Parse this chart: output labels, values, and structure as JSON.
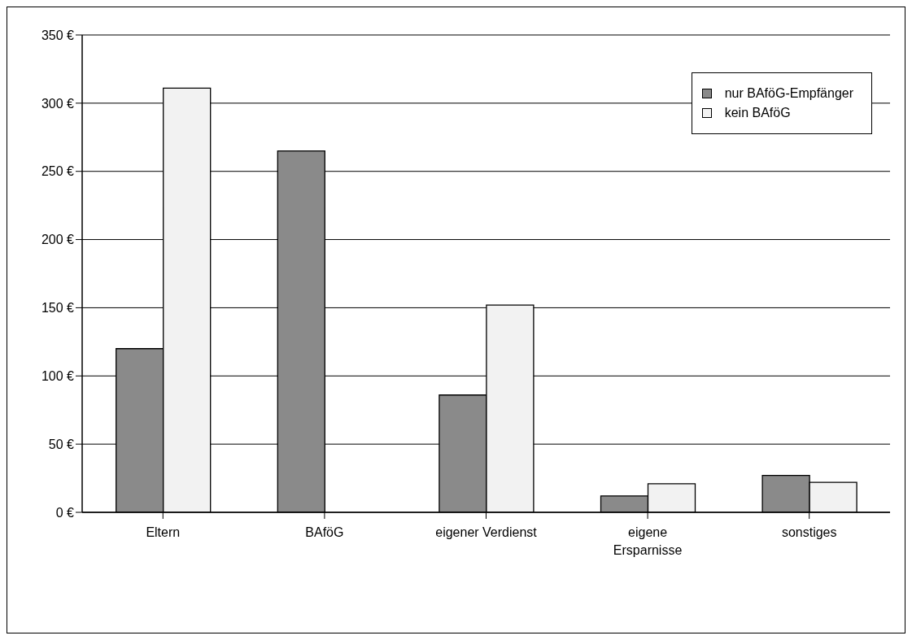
{
  "chart_data": {
    "type": "bar",
    "categories": [
      "Eltern",
      "BAföG",
      "eigener Verdienst",
      "eigene Ersparnisse",
      "sonstiges"
    ],
    "series": [
      {
        "name": "nur BAföG-Empfänger",
        "color": "#8a8a8a",
        "values": [
          120,
          265,
          86,
          12,
          27
        ]
      },
      {
        "name": "kein BAföG",
        "color": "#f2f2f2",
        "values": [
          311,
          null,
          152,
          21,
          22
        ]
      }
    ],
    "ylim": [
      0,
      350
    ],
    "yticks": [
      {
        "value": 0,
        "label": "0 €"
      },
      {
        "value": 50,
        "label": "50 €"
      },
      {
        "value": 100,
        "label": "100 €"
      },
      {
        "value": 150,
        "label": "150 €"
      },
      {
        "value": 200,
        "label": "200 €"
      },
      {
        "value": 250,
        "label": "250 €"
      },
      {
        "value": 300,
        "label": "300 €"
      },
      {
        "value": 350,
        "label": "350 €"
      }
    ],
    "grid": "y",
    "legend": "top right"
  }
}
